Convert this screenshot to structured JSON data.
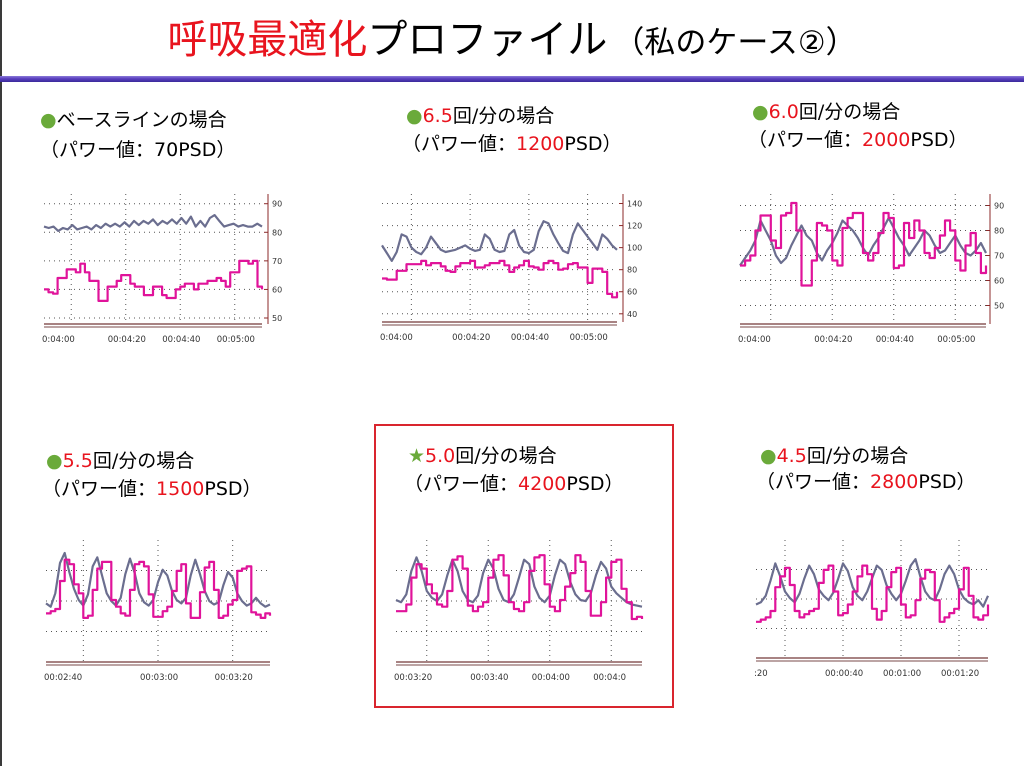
{
  "slide": {
    "title_red": "呼吸最適化",
    "title_black": "プロファイル",
    "title_sub": "（私のケース②）"
  },
  "panels": [
    {
      "marker": "●",
      "rate": "",
      "label_main": "ベースラインの場合",
      "power_prefix": "（パワー値：",
      "power_value": "70",
      "power_suffix": "PSD）"
    },
    {
      "marker": "●",
      "rate": "6.5",
      "label_main": "回/分の場合",
      "power_prefix": "（パワー値：",
      "power_value": "1200",
      "power_suffix": "PSD）"
    },
    {
      "marker": "●",
      "rate": "6.0",
      "label_main": "回/分の場合",
      "power_prefix": "（パワー値：",
      "power_value": "2000",
      "power_suffix": "PSD）"
    },
    {
      "marker": "●",
      "rate": "5.5",
      "label_main": "回/分の場合",
      "power_prefix": "（パワー値：",
      "power_value": "1500",
      "power_suffix": "PSD）"
    },
    {
      "marker": "★",
      "rate": "5.0",
      "label_main": "回/分の場合",
      "power_prefix": "（パワー値：",
      "power_value": "4200",
      "power_suffix": "PSD）"
    },
    {
      "marker": "●",
      "rate": "4.5",
      "label_main": "回/分の場合",
      "power_prefix": "（パワー値：",
      "power_value": "2800",
      "power_suffix": "PSD）"
    }
  ],
  "chart_data": [
    {
      "type": "line",
      "x_ticks": [
        "0:04:00",
        "00:04:20",
        "00:04:40",
        "00:05:00"
      ],
      "y_ticks": [
        "50",
        "60",
        "70",
        "80",
        "90"
      ],
      "ylim": [
        50,
        92
      ],
      "colors": {
        "series_a": "#6b6e8f",
        "series_b": "#e0139a",
        "baseline": "#8b5a5a"
      },
      "series": [
        {
          "values": [
            82,
            81.5,
            82,
            80.5,
            81.5,
            81,
            82.5,
            81,
            81.5,
            82,
            81,
            82.5,
            81.5,
            83,
            82,
            83,
            82,
            83.5,
            82,
            84,
            82.5,
            84,
            83,
            84.5,
            82.5,
            84,
            83,
            84.5,
            83,
            85,
            83,
            85.5,
            82,
            84,
            82,
            85,
            86,
            84,
            82,
            82.5,
            83,
            82,
            82.5,
            82,
            82,
            83,
            82
          ]
        },
        {
          "values": [
            60,
            59,
            58.5,
            64,
            64,
            67,
            67,
            66,
            69,
            66,
            63,
            63,
            56,
            56,
            61,
            61,
            63,
            65,
            65,
            62,
            61,
            61,
            58,
            58,
            61,
            61,
            58,
            57,
            57,
            60,
            61,
            62,
            62,
            60,
            62,
            62,
            63,
            63,
            64,
            63,
            61,
            66,
            66,
            70,
            70,
            69,
            70,
            61,
            60
          ]
        }
      ]
    },
    {
      "type": "line",
      "x_ticks": [
        "0:04:00",
        "00:04:20",
        "00:04:40",
        "00:05:00"
      ],
      "y_ticks": [
        "40",
        "60",
        "80",
        "100",
        "120",
        "140"
      ],
      "ylim": [
        38,
        145
      ],
      "colors": {
        "series_a": "#6b6e8f",
        "series_b": "#e0139a",
        "baseline": "#8b5a5a"
      },
      "series": [
        {
          "values": [
            102,
            95,
            88,
            96,
            112,
            110,
            100,
            96,
            94,
            100,
            110,
            104,
            98,
            96,
            97,
            98,
            100,
            102,
            99,
            97,
            98,
            112,
            108,
            98,
            96,
            97,
            112,
            116,
            102,
            96,
            95,
            98,
            115,
            124,
            122,
            112,
            104,
            97,
            95,
            112,
            122,
            116,
            110,
            104,
            98,
            112,
            108,
            102,
            98
          ]
        },
        {
          "values": [
            72,
            71,
            71,
            79,
            79,
            85,
            85,
            85,
            88,
            84,
            86,
            86,
            83,
            79,
            78,
            83,
            86,
            86,
            88,
            82,
            82,
            84,
            86,
            86,
            88,
            84,
            78,
            82,
            84,
            88,
            83,
            82,
            80,
            86,
            88,
            86,
            80,
            81,
            85,
            86,
            82,
            82,
            68,
            81,
            81,
            78,
            58,
            55,
            60
          ]
        }
      ]
    },
    {
      "type": "line",
      "x_ticks": [
        "0:04:00",
        "00:04:20",
        "00:04:40",
        "00:05:00"
      ],
      "y_ticks": [
        "50",
        "60",
        "70",
        "80",
        "90"
      ],
      "ylim": [
        45,
        93
      ],
      "colors": {
        "series_a": "#6b6e8f",
        "series_b": "#e0139a",
        "baseline": "#8b5a5a"
      },
      "series": [
        {
          "values": [
            66,
            69,
            72,
            76,
            84,
            80,
            76,
            70,
            67,
            69,
            74,
            78,
            82,
            78,
            76,
            71,
            68,
            72,
            75,
            79,
            84,
            82,
            80,
            77,
            73,
            70,
            74,
            77,
            81,
            85,
            81,
            77,
            74,
            70,
            73,
            76,
            80,
            78,
            74,
            71,
            72,
            75,
            78,
            74,
            71,
            70,
            72,
            75,
            71
          ]
        },
        {
          "values": [
            66,
            68,
            70,
            80,
            86,
            86,
            76,
            73,
            86,
            87,
            91,
            80,
            58,
            58,
            68,
            83,
            82,
            80,
            68,
            66,
            81,
            85,
            87,
            87,
            71,
            68,
            71,
            79,
            87,
            85,
            65,
            66,
            83,
            77,
            84,
            80,
            71,
            69,
            73,
            78,
            84,
            80,
            68,
            64,
            74,
            79,
            71,
            63,
            66
          ]
        }
      ]
    },
    {
      "type": "line",
      "x_ticks": [
        "00:02:40",
        "00:03:00",
        "00:03:20"
      ],
      "y_ticks": [],
      "ylim": [
        0,
        100
      ],
      "colors": {
        "series_a": "#6b6e8f",
        "series_b": "#e0139a",
        "baseline": "#8b5a5a"
      },
      "series": [
        {
          "values": [
            47,
            44,
            56,
            83,
            92,
            75,
            60,
            50,
            45,
            55,
            80,
            88,
            72,
            56,
            49,
            45,
            52,
            73,
            87,
            74,
            56,
            48,
            45,
            50,
            66,
            77,
            72,
            58,
            50,
            47,
            52,
            72,
            86,
            73,
            58,
            49,
            46,
            48,
            63,
            75,
            70,
            56,
            49,
            45,
            47,
            52,
            47,
            44,
            46
          ]
        },
        {
          "values": [
            38,
            40,
            42,
            67,
            86,
            82,
            64,
            56,
            34,
            36,
            59,
            78,
            84,
            84,
            50,
            44,
            38,
            36,
            59,
            82,
            84,
            80,
            55,
            35,
            35,
            40,
            44,
            58,
            76,
            82,
            47,
            34,
            34,
            57,
            79,
            84,
            59,
            34,
            36,
            46,
            50,
            76,
            78,
            80,
            39,
            37,
            34,
            38,
            36
          ]
        }
      ]
    },
    {
      "type": "line",
      "x_ticks": [
        "00:03:20",
        "00:03:40",
        "00:04:00",
        "00:04:0"
      ],
      "y_ticks": [],
      "ylim": [
        0,
        100
      ],
      "colors": {
        "series_a": "#6b6e8f",
        "series_b": "#e0139a",
        "baseline": "#8b5a5a"
      },
      "series": [
        {
          "values": [
            50,
            48,
            55,
            76,
            88,
            76,
            58,
            52,
            49,
            55,
            72,
            86,
            76,
            58,
            50,
            48,
            54,
            74,
            86,
            78,
            60,
            50,
            48,
            55,
            70,
            86,
            82,
            62,
            52,
            48,
            54,
            72,
            86,
            82,
            66,
            55,
            50,
            49,
            56,
            72,
            84,
            78,
            62,
            56,
            52,
            48,
            46,
            45,
            44
          ]
        },
        {
          "values": [
            40,
            40,
            46,
            70,
            82,
            78,
            64,
            56,
            46,
            44,
            58,
            86,
            89,
            78,
            45,
            40,
            44,
            48,
            70,
            86,
            90,
            72,
            48,
            42,
            40,
            48,
            76,
            88,
            90,
            64,
            44,
            40,
            50,
            62,
            74,
            90,
            84,
            58,
            36,
            36,
            48,
            70,
            84,
            86,
            60,
            48,
            33,
            35,
            33
          ]
        }
      ]
    },
    {
      "type": "line",
      "x_ticks": [
        ":20",
        "00:00:40",
        "00:01:00",
        "00:01:20"
      ],
      "y_ticks": [],
      "ylim": [
        0,
        100
      ],
      "colors": {
        "series_a": "#6b6e8f",
        "series_b": "#e0139a",
        "baseline": "#8b5a5a"
      },
      "series": [
        {
          "values": [
            44,
            46,
            52,
            66,
            82,
            70,
            56,
            50,
            46,
            54,
            68,
            80,
            72,
            58,
            52,
            48,
            55,
            68,
            82,
            75,
            60,
            52,
            48,
            56,
            68,
            80,
            76,
            62,
            54,
            48,
            54,
            66,
            80,
            86,
            70,
            56,
            50,
            48,
            58,
            72,
            80,
            72,
            58,
            50,
            46,
            44,
            48,
            42,
            52
          ]
        },
        {
          "values": [
            28,
            30,
            32,
            38,
            60,
            70,
            78,
            62,
            38,
            32,
            35,
            38,
            40,
            64,
            76,
            80,
            56,
            34,
            36,
            44,
            56,
            70,
            80,
            72,
            40,
            30,
            38,
            60,
            74,
            78,
            44,
            32,
            34,
            48,
            68,
            76,
            74,
            48,
            28,
            32,
            36,
            40,
            58,
            78,
            52,
            32,
            30,
            34,
            44
          ]
        }
      ]
    }
  ]
}
